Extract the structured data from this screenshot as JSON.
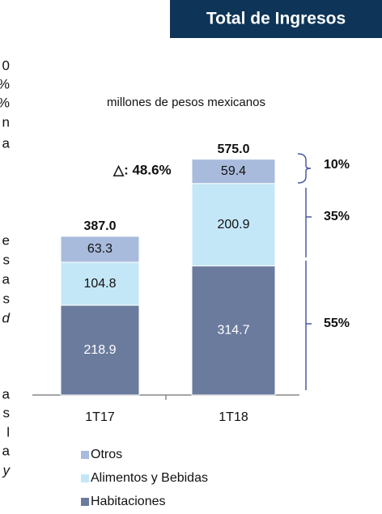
{
  "margin_text": [
    "0",
    "%",
    "%",
    "n",
    "a",
    "e",
    "s",
    "a",
    "s",
    "d",
    "a",
    "s",
    "l",
    "a",
    "y"
  ],
  "chart_data": {
    "type": "stacked_bar",
    "title": "Total de Ingresos",
    "subtitle": "millones de pesos mexicanos",
    "categories": [
      "1T17",
      "1T18"
    ],
    "series": [
      {
        "name": "Habitaciones",
        "color": "#6b7b9e",
        "values": [
          218.9,
          314.7
        ]
      },
      {
        "name": "Alimentos y Bebidas",
        "color": "#c4e7f7",
        "values": [
          104.8,
          200.9
        ]
      },
      {
        "name": "Otros",
        "color": "#a9bbdc",
        "values": [
          63.3,
          59.4
        ]
      }
    ],
    "totals": {
      "values": [
        387,
        575
      ],
      "value_labels": [
        "387.0",
        "575.0"
      ]
    },
    "annotations": [
      "△: 48.6%",
      "10%",
      "35%",
      "55%"
    ],
    "ylim": [
      0,
      600
    ]
  }
}
